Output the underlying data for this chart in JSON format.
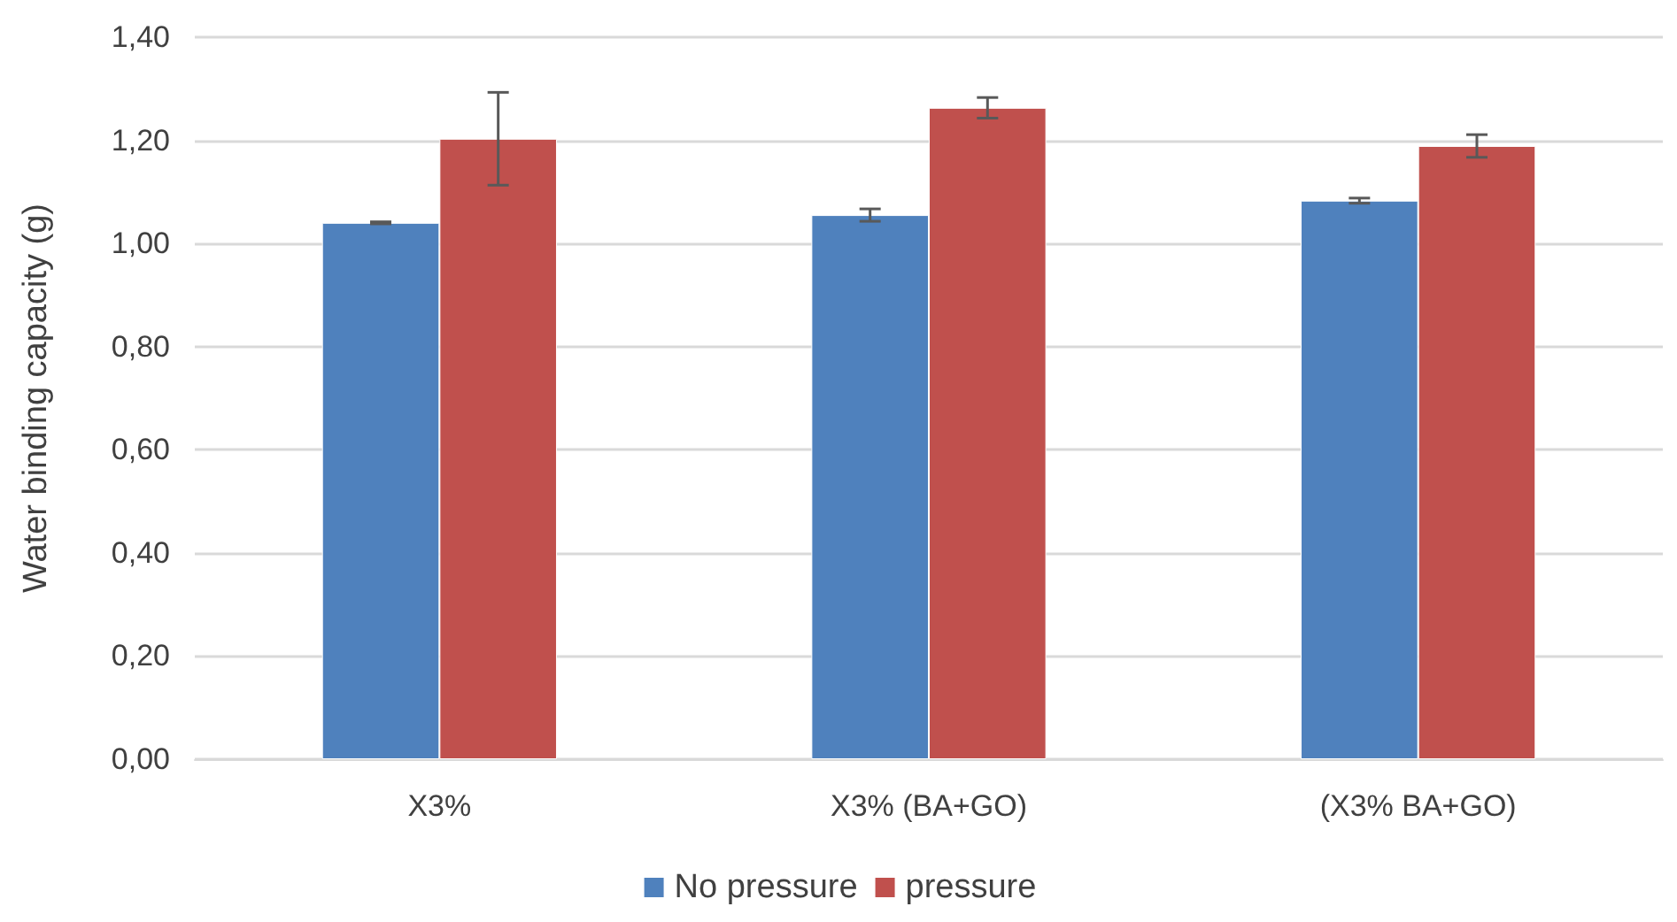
{
  "chart_data": {
    "type": "bar",
    "ylabel": "Water binding capacity (g)",
    "categories": [
      "X3%",
      "X3% (BA+GO)",
      "(X3% BA+GO)"
    ],
    "series": [
      {
        "name": "No pressure",
        "color": "#4f81bd",
        "values": [
          1.04,
          1.055,
          1.083
        ],
        "errors": [
          0.002,
          0.012,
          0.005
        ]
      },
      {
        "name": "pressure",
        "color": "#c0504d",
        "values": [
          1.203,
          1.263,
          1.189
        ],
        "errors": [
          0.09,
          0.02,
          0.022
        ]
      }
    ],
    "ylim": [
      0,
      1.4
    ],
    "yticks": [
      {
        "value": 0,
        "label": "0,00"
      },
      {
        "value": 0.2,
        "label": "0,20"
      },
      {
        "value": 0.4,
        "label": "0,40"
      },
      {
        "value": 0.6,
        "label": "0,60"
      },
      {
        "value": 0.8,
        "label": "0,80"
      },
      {
        "value": 1,
        "label": "1,00"
      },
      {
        "value": 1.2,
        "label": "1,20"
      },
      {
        "value": 1.4,
        "label": "1,40"
      }
    ],
    "grid": "y",
    "legend": "bottom"
  }
}
